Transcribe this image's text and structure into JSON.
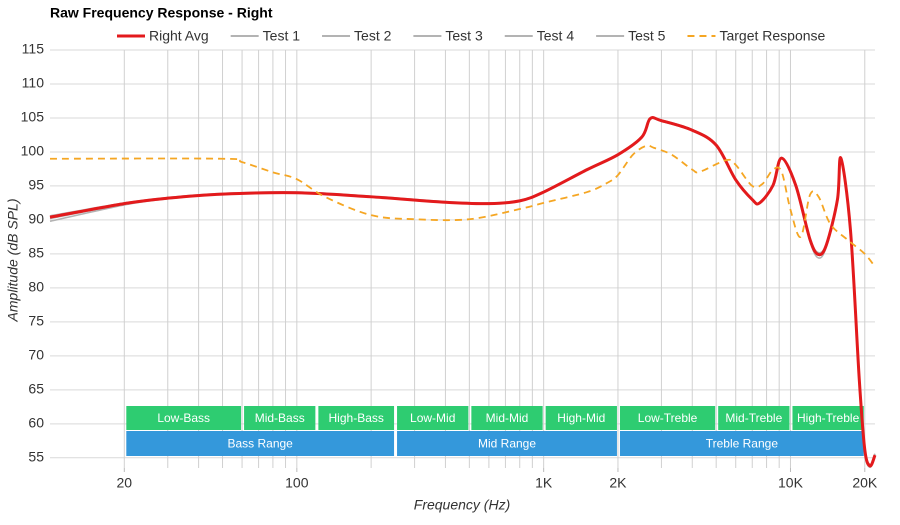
{
  "chart_data": {
    "type": "line",
    "title": "Raw Frequency Response - Right",
    "x_label": "Frequency (Hz)",
    "y_label": "Amplitude (dB SPL)",
    "xscale": "log",
    "grid": true,
    "xlim": [
      10,
      22000
    ],
    "ylim": [
      53.5,
      115
    ],
    "xticks": [
      20,
      100,
      {
        "value": 1000,
        "label": "1K"
      },
      {
        "value": 2000,
        "label": "2K"
      },
      {
        "value": 10000,
        "label": "10K"
      },
      {
        "value": 20000,
        "label": "20K"
      }
    ],
    "xgrid": [
      20,
      30,
      40,
      50,
      60,
      70,
      80,
      90,
      100,
      200,
      300,
      400,
      500,
      600,
      700,
      800,
      900,
      1000,
      2000,
      3000,
      4000,
      5000,
      6000,
      7000,
      8000,
      9000,
      10000,
      20000
    ],
    "yticks": [
      55,
      60,
      65,
      70,
      75,
      80,
      85,
      90,
      95,
      100,
      105,
      110,
      115
    ],
    "bands": [
      {
        "label": "Low-Bass",
        "start": 20,
        "end": 60,
        "color": "#2ecc71"
      },
      {
        "label": "Mid-Bass",
        "start": 60,
        "end": 120,
        "color": "#2ecc71"
      },
      {
        "label": "High-Bass",
        "start": 120,
        "end": 250,
        "color": "#2ecc71"
      },
      {
        "label": "Low-Mid",
        "start": 250,
        "end": 500,
        "color": "#2ecc71"
      },
      {
        "label": "Mid-Mid",
        "start": 500,
        "end": 1000,
        "color": "#2ecc71"
      },
      {
        "label": "High-Mid",
        "start": 1000,
        "end": 2000,
        "color": "#2ecc71"
      },
      {
        "label": "Low-Treble",
        "start": 2000,
        "end": 5000,
        "color": "#2ecc71"
      },
      {
        "label": "Mid-Treble",
        "start": 5000,
        "end": 10000,
        "color": "#2ecc71"
      },
      {
        "label": "High-Treble",
        "start": 10000,
        "end": 20000,
        "color": "#2ecc71"
      }
    ],
    "ranges": [
      {
        "label": "Bass Range",
        "start": 20,
        "end": 250,
        "color": "#3498db"
      },
      {
        "label": "Mid Range",
        "start": 250,
        "end": 2000,
        "color": "#3498db"
      },
      {
        "label": "Treble Range",
        "start": 2000,
        "end": 20000,
        "color": "#3498db"
      }
    ],
    "series": [
      {
        "name": "Right Avg",
        "color": "#e31a1c",
        "dash": false,
        "width": 3,
        "x": [
          10,
          20,
          30,
          50,
          100,
          200,
          400,
          600,
          800,
          1000,
          1500,
          2000,
          2500,
          2700,
          3000,
          4000,
          5000,
          6000,
          7000,
          7500,
          8500,
          9200,
          10500,
          12000,
          13000,
          14000,
          15500,
          16000,
          17500,
          19000,
          20000,
          21000,
          22000
        ],
        "values": [
          90.4,
          92.4,
          93.2,
          93.8,
          94.0,
          93.4,
          92.6,
          92.4,
          92.8,
          94.1,
          97.4,
          99.6,
          102.2,
          104.9,
          104.6,
          103.2,
          101.0,
          95.9,
          93.0,
          92.5,
          95.1,
          99.1,
          95.1,
          87.1,
          84.9,
          86.4,
          93.0,
          99.1,
          88.5,
          66.5,
          56.2,
          53.8,
          55.4
        ]
      },
      {
        "name": "Test 1",
        "color": "#b3b3b3",
        "dash": false,
        "width": 1.5,
        "x": [
          10,
          20,
          30,
          50,
          100,
          200,
          400,
          600,
          800,
          1000,
          1500,
          2000,
          2500,
          2700,
          3000,
          4000,
          5000,
          6000,
          7000,
          7500,
          8500,
          9200,
          10500,
          12000,
          13000,
          14000,
          15500,
          16000,
          17500,
          19000,
          20000,
          21000,
          22000
        ],
        "values": [
          89.8,
          92.2,
          93.1,
          93.8,
          94.0,
          93.4,
          92.6,
          92.4,
          92.8,
          94.0,
          97.3,
          99.5,
          102.2,
          104.8,
          104.6,
          103.3,
          101.1,
          95.8,
          92.9,
          92.4,
          95.0,
          99.0,
          95.0,
          86.8,
          84.4,
          86.1,
          92.8,
          99.0,
          88.3,
          66.0,
          55.8,
          53.6,
          55.2
        ]
      },
      {
        "name": "Test 2",
        "color": "#b3b3b3",
        "dash": false,
        "width": 1.5,
        "x": [
          10,
          20,
          30,
          50,
          100,
          200,
          400,
          600,
          800,
          1000,
          1500,
          2000,
          2500,
          2700,
          3000,
          4000,
          5000,
          6000,
          7000,
          7500,
          8500,
          9200,
          10500,
          12000,
          13000,
          14000,
          15500,
          16000,
          17500,
          19000,
          20000,
          21000,
          22000
        ],
        "values": [
          90.6,
          92.5,
          93.3,
          93.9,
          94.1,
          93.5,
          92.7,
          92.5,
          92.9,
          94.2,
          97.5,
          99.7,
          102.3,
          104.9,
          104.7,
          103.3,
          101.0,
          96.0,
          93.1,
          92.6,
          95.2,
          99.2,
          95.2,
          87.3,
          85.2,
          86.6,
          93.1,
          99.2,
          88.7,
          66.8,
          56.5,
          54.0,
          55.6
        ]
      },
      {
        "name": "Test 3",
        "color": "#b3b3b3",
        "dash": false,
        "width": 1.5,
        "x": [
          10,
          20,
          30,
          50,
          100,
          200,
          400,
          600,
          800,
          1000,
          1500,
          2000,
          2500,
          2700,
          3000,
          4000,
          5000,
          6000,
          7000,
          7500,
          8500,
          9200,
          10500,
          12000,
          13000,
          14000,
          15500,
          16000,
          17500,
          19000,
          20000,
          21000,
          22000
        ],
        "values": [
          90.3,
          92.4,
          93.2,
          93.8,
          94.0,
          93.4,
          92.6,
          92.4,
          92.8,
          94.1,
          97.4,
          99.6,
          102.1,
          104.8,
          104.5,
          103.1,
          100.9,
          95.9,
          93.0,
          92.5,
          95.1,
          99.1,
          95.1,
          87.0,
          84.8,
          86.3,
          92.9,
          99.0,
          88.4,
          66.4,
          56.1,
          53.7,
          55.3
        ]
      },
      {
        "name": "Test 4",
        "color": "#b3b3b3",
        "dash": false,
        "width": 1.5,
        "x": [
          10,
          20,
          30,
          50,
          100,
          200,
          400,
          600,
          800,
          1000,
          1500,
          2000,
          2500,
          2700,
          3000,
          4000,
          5000,
          6000,
          7000,
          7500,
          8500,
          9200,
          10500,
          12000,
          13000,
          14000,
          15500,
          16000,
          17500,
          19000,
          20000,
          21000,
          22000
        ],
        "values": [
          90.5,
          92.4,
          93.2,
          93.8,
          94.0,
          93.4,
          92.6,
          92.4,
          92.8,
          94.1,
          97.4,
          99.6,
          102.2,
          104.9,
          104.6,
          103.2,
          101.0,
          95.9,
          93.0,
          92.5,
          95.1,
          99.1,
          95.1,
          87.2,
          85.0,
          86.5,
          93.0,
          99.1,
          88.6,
          66.6,
          56.3,
          53.9,
          55.5
        ]
      },
      {
        "name": "Test 5",
        "color": "#b3b3b3",
        "dash": false,
        "width": 1.5,
        "x": [
          10,
          20,
          30,
          50,
          100,
          200,
          400,
          600,
          800,
          1000,
          1500,
          2000,
          2500,
          2700,
          3000,
          4000,
          5000,
          6000,
          7000,
          7500,
          8500,
          9200,
          10500,
          12000,
          13000,
          14000,
          15500,
          16000,
          17500,
          19000,
          20000,
          21000,
          22000
        ],
        "values": [
          90.2,
          92.3,
          93.2,
          93.8,
          94.0,
          93.4,
          92.6,
          92.4,
          92.8,
          94.1,
          97.4,
          99.6,
          102.2,
          104.9,
          104.6,
          103.2,
          101.0,
          95.9,
          93.0,
          92.5,
          95.1,
          99.1,
          95.1,
          87.1,
          84.9,
          86.4,
          93.0,
          99.1,
          88.5,
          66.5,
          56.2,
          53.8,
          55.4
        ]
      },
      {
        "name": "Target Response",
        "color": "#f5a623",
        "dash": true,
        "width": 1.8,
        "x": [
          10,
          50,
          60,
          80,
          100,
          130,
          200,
          300,
          500,
          800,
          1000,
          1500,
          1800,
          2000,
          2300,
          2600,
          2800,
          3300,
          4000,
          4300,
          5500,
          6000,
          7000,
          7700,
          8500,
          9200,
          10000,
          11000,
          12000,
          13000,
          14500,
          17000,
          20000,
          22000
        ],
        "values": [
          99.0,
          99.0,
          98.5,
          97.0,
          96.0,
          93.4,
          90.7,
          90.1,
          90.1,
          91.6,
          92.5,
          94.1,
          95.4,
          96.6,
          99.6,
          100.9,
          100.6,
          99.6,
          97.4,
          97.1,
          98.8,
          98.1,
          95.0,
          95.3,
          97.4,
          97.1,
          91.5,
          87.5,
          93.7,
          93.4,
          89.4,
          87.1,
          85.0,
          83.1
        ]
      }
    ]
  }
}
